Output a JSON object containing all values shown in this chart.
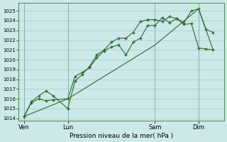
{
  "bg_color": "#cce8e8",
  "grid_color": "#aacccc",
  "line_color": "#2d6a2d",
  "marker_color": "#2d6a2d",
  "xlabel": "Pression niveau de la mer( hPa )",
  "ylim_low": 1013.8,
  "ylim_high": 1025.8,
  "yticks": [
    1014,
    1015,
    1016,
    1017,
    1018,
    1019,
    1020,
    1021,
    1022,
    1023,
    1024,
    1025
  ],
  "xtick_labels": [
    "Ven",
    "Lun",
    "Sam",
    "Dim"
  ],
  "xtick_positions": [
    0,
    24,
    72,
    96
  ],
  "xlim_low": -3,
  "xlim_high": 110,
  "series1_x": [
    0,
    4,
    8,
    12,
    16,
    24,
    28,
    32,
    36,
    40,
    44,
    48,
    52,
    56,
    60,
    64,
    68,
    72,
    76,
    80,
    84,
    88,
    92,
    96,
    100,
    104
  ],
  "series1_y": [
    1014.2,
    1015.7,
    1016.3,
    1016.8,
    1016.3,
    1015.0,
    1017.8,
    1018.5,
    1019.3,
    1020.5,
    1021.0,
    1021.8,
    1022.2,
    1022.2,
    1022.8,
    1023.9,
    1024.1,
    1024.1,
    1023.9,
    1024.4,
    1024.2,
    1023.8,
    1025.0,
    1025.2,
    1023.1,
    1022.8
  ],
  "series2_x": [
    0,
    4,
    8,
    12,
    16,
    24,
    28,
    32,
    36,
    40,
    44,
    48,
    52,
    56,
    60,
    64,
    68,
    72,
    76,
    80,
    84,
    88,
    92,
    96,
    100,
    104
  ],
  "series2_y": [
    1014.2,
    1015.6,
    1016.0,
    1015.8,
    1015.9,
    1016.0,
    1018.3,
    1018.7,
    1019.2,
    1020.2,
    1020.9,
    1021.3,
    1021.5,
    1020.5,
    1021.8,
    1022.2,
    1023.5,
    1023.5,
    1024.3,
    1023.8,
    1024.2,
    1023.6,
    1023.7,
    1021.2,
    1021.1,
    1021.0
  ],
  "series3_x": [
    0,
    24,
    72,
    96,
    104
  ],
  "series3_y": [
    1014.2,
    1016.0,
    1021.5,
    1025.2,
    1021.0
  ],
  "vline_positions": [
    0,
    24,
    72,
    96
  ]
}
